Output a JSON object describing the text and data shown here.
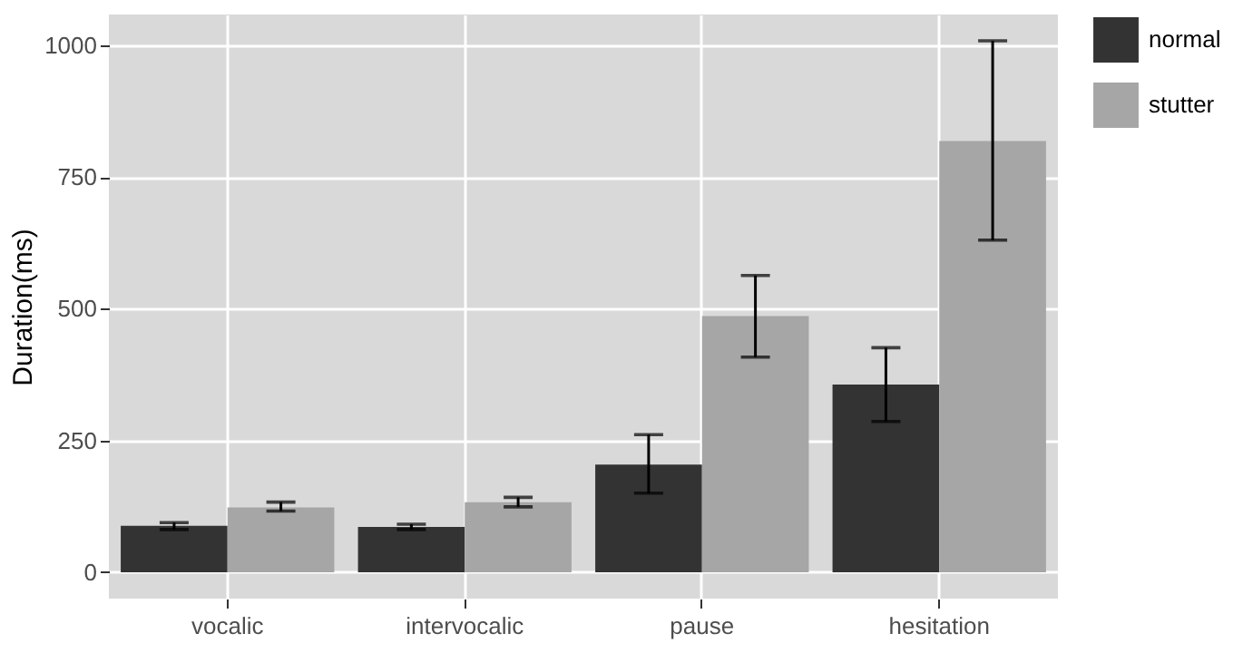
{
  "chart_data": {
    "type": "bar",
    "ylabel": "Duration(ms)",
    "categories": [
      "vocalic",
      "intervocalic",
      "pause",
      "hesitation"
    ],
    "series": [
      {
        "name": "normal",
        "color": "#333333",
        "values": [
          88,
          86,
          204,
          356
        ],
        "errors": [
          [
            81,
            94
          ],
          [
            81,
            91
          ],
          [
            150,
            261
          ],
          [
            286,
            426
          ]
        ]
      },
      {
        "name": "stutter",
        "color": "#a6a6a6",
        "values": [
          123,
          133,
          486,
          818
        ],
        "errors": [
          [
            116,
            133
          ],
          [
            124,
            142
          ],
          [
            408,
            563
          ],
          [
            630,
            1008
          ]
        ]
      }
    ],
    "ylim": [
      -50,
      1058
    ],
    "yticks": [
      0,
      250,
      500,
      750,
      1000
    ],
    "grid": true,
    "legend": "right"
  }
}
